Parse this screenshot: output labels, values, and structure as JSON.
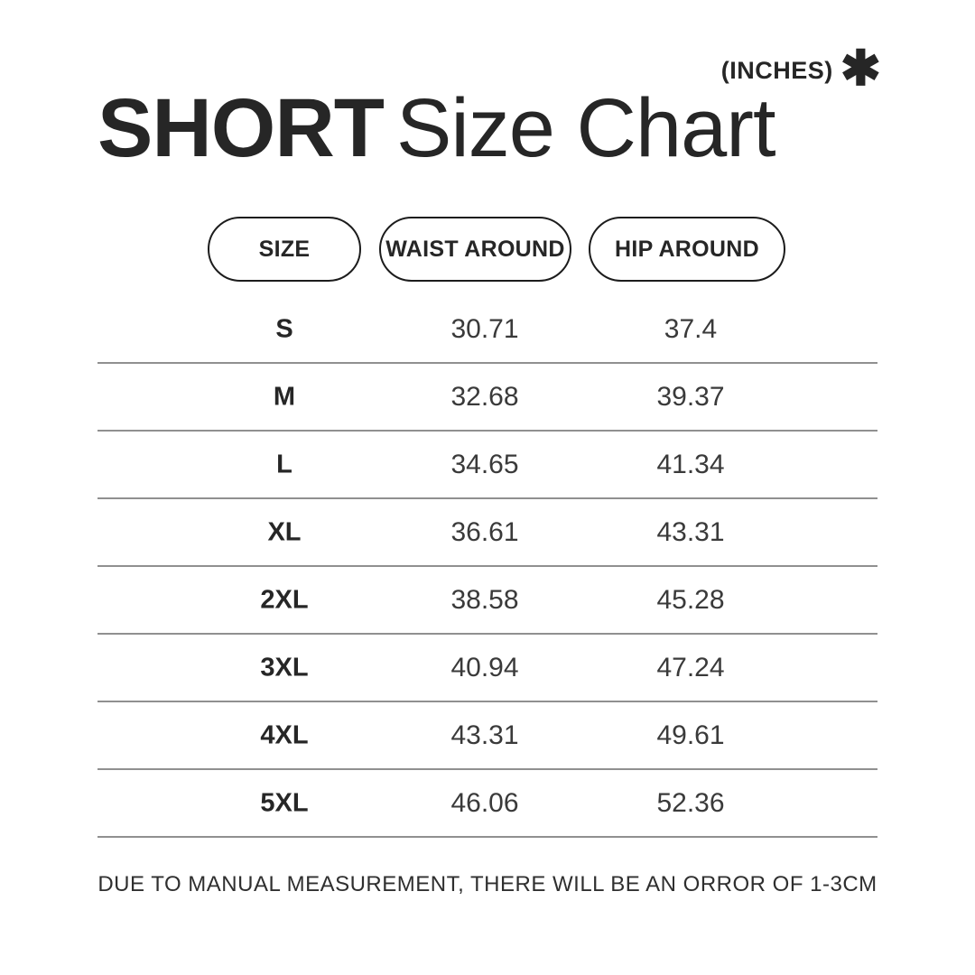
{
  "meta": {
    "unit_label": "(INCHES)",
    "asterisk_icon": "✱"
  },
  "title": {
    "bold": "SHORT",
    "regular": "Size Chart"
  },
  "table": {
    "headers": [
      {
        "label": "SIZE"
      },
      {
        "label": "WAIST AROUND"
      },
      {
        "label": "HIP AROUND"
      }
    ],
    "rows": [
      {
        "size": "S",
        "waist": "30.71",
        "hip": "37.4"
      },
      {
        "size": "M",
        "waist": "32.68",
        "hip": "39.37"
      },
      {
        "size": "L",
        "waist": "34.65",
        "hip": "41.34"
      },
      {
        "size": "XL",
        "waist": "36.61",
        "hip": "43.31"
      },
      {
        "size": "2XL",
        "waist": "38.58",
        "hip": "45.28"
      },
      {
        "size": "3XL",
        "waist": "40.94",
        "hip": "47.24"
      },
      {
        "size": "4XL",
        "waist": "43.31",
        "hip": "49.61"
      },
      {
        "size": "5XL",
        "waist": "46.06",
        "hip": "52.36"
      }
    ]
  },
  "footer": {
    "note": "DUE TO MANUAL MEASUREMENT, THERE WILL BE AN ORROR OF 1-3CM"
  },
  "colors": {
    "background": "#ffffff",
    "text_primary": "#262626",
    "text_secondary": "#3a3a3a",
    "divider": "#909090",
    "pill_outline": "#1c1c1c"
  },
  "chart_data": {
    "type": "table",
    "title": "SHORT Size Chart",
    "unit": "INCHES",
    "columns": [
      "SIZE",
      "WAIST AROUND",
      "HIP AROUND"
    ],
    "rows": [
      [
        "S",
        30.71,
        37.4
      ],
      [
        "M",
        32.68,
        39.37
      ],
      [
        "L",
        34.65,
        41.34
      ],
      [
        "XL",
        36.61,
        43.31
      ],
      [
        "2XL",
        38.58,
        45.28
      ],
      [
        "3XL",
        40.94,
        47.24
      ],
      [
        "4XL",
        43.31,
        49.61
      ],
      [
        "5XL",
        46.06,
        52.36
      ]
    ],
    "footnote": "DUE TO MANUAL MEASUREMENT, THERE WILL BE AN ORROR OF 1-3CM"
  }
}
